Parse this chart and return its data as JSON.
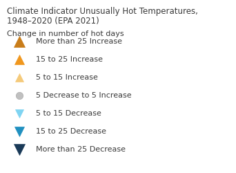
{
  "title_line1": "Climate Indicator Unusually Hot Temperatures,",
  "title_line2": "1948–2020 (EPA 2021)",
  "subtitle": "Change in number of hot days",
  "title_fontsize": 8.5,
  "subtitle_fontsize": 8.0,
  "label_fontsize": 8.0,
  "background_color": "#ffffff",
  "items": [
    {
      "label": "More than 25 Increase",
      "marker": "^",
      "color": "#c97d1a",
      "size": 120,
      "edgecolor": "#c97d1a"
    },
    {
      "label": "15 to 25 Increase",
      "marker": "^",
      "color": "#f0971e",
      "size": 90,
      "edgecolor": "#f0971e"
    },
    {
      "label": "5 to 15 Increase",
      "marker": "^",
      "color": "#f5ca7a",
      "size": 65,
      "edgecolor": "#f5ca7a"
    },
    {
      "label": "5 Decrease to 5 Increase",
      "marker": "o",
      "color": "#c0c0c0",
      "size": 55,
      "edgecolor": "#aaaaaa"
    },
    {
      "label": "5 to 15 Decrease",
      "marker": "v",
      "color": "#7fd4f2",
      "size": 65,
      "edgecolor": "#7fd4f2"
    },
    {
      "label": "15 to 25 Decrease",
      "marker": "v",
      "color": "#2090c0",
      "size": 90,
      "edgecolor": "#2090c0"
    },
    {
      "label": "More than 25 Decrease",
      "marker": "v",
      "color": "#1a3a58",
      "size": 120,
      "edgecolor": "#1a3a58"
    }
  ],
  "figwidth": 3.42,
  "figheight": 2.5,
  "dpi": 100
}
